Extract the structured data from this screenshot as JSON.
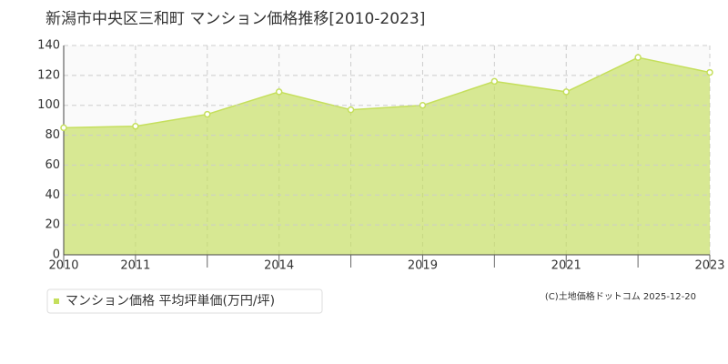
{
  "chart_data": {
    "type": "area",
    "title": "新潟市中央区三和町 マンション価格推移[2010-2023]",
    "categories": [
      "2010",
      "2011",
      null,
      "2014",
      null,
      "2019",
      null,
      "2021",
      null,
      "2023"
    ],
    "series": [
      {
        "name": "マンション価格 平均坪単価(万円/坪)",
        "color": "#c5df5c",
        "values": [
          85,
          86,
          94,
          109,
          97,
          100,
          116,
          109,
          132,
          122
        ]
      }
    ],
    "ylim": [
      0,
      140
    ],
    "yticks": [
      0,
      20,
      40,
      60,
      80,
      100,
      120,
      140
    ],
    "grid": true
  },
  "credit": "(C)土地価格ドットコム 2025-12-20"
}
